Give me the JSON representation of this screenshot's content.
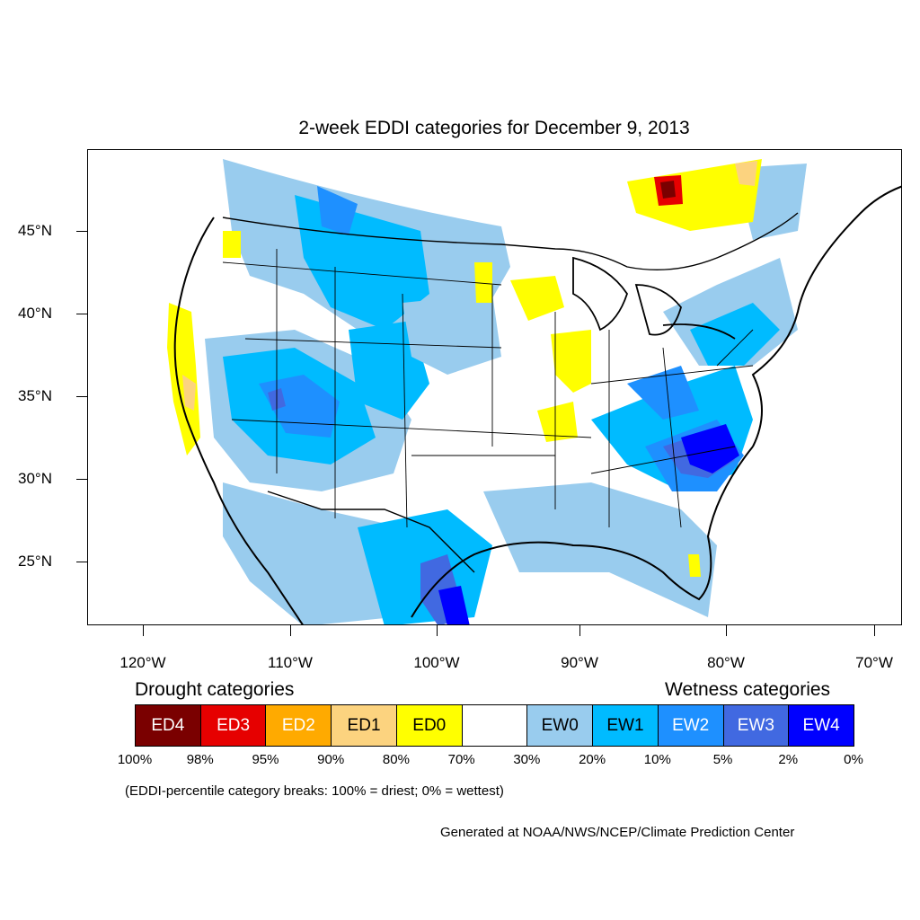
{
  "title": "2-week EDDI categories for December 9, 2013",
  "map": {
    "projection": "Lambert conformal (CONUS)",
    "lat_ticks": [
      "45°N",
      "40°N",
      "35°N",
      "30°N",
      "25°N"
    ],
    "lon_ticks": [
      "120°W",
      "110°W",
      "100°W",
      "90°W",
      "80°W",
      "70°W"
    ],
    "regions": [
      {
        "category": "EW1",
        "area": "Northern Rockies / Montana"
      },
      {
        "category": "EW2",
        "area": "Great Basin, Utah, Colorado"
      },
      {
        "category": "EW4",
        "area": "South Carolina / Georgia coast"
      },
      {
        "category": "EW3",
        "area": "South Texas Gulf coast"
      },
      {
        "category": "ED0",
        "area": "Illinois / Missouri, Wisconsin, Northern California coast"
      },
      {
        "category": "ED4",
        "area": "Eastern Ontario / Quebec"
      }
    ]
  },
  "legend": {
    "drought_heading": "Drought categories",
    "wetness_heading": "Wetness categories",
    "categories": [
      {
        "label": "ED4",
        "color": "#7a0000",
        "text_color": "#ffffff"
      },
      {
        "label": "ED3",
        "color": "#e60000",
        "text_color": "#ffffff"
      },
      {
        "label": "ED2",
        "color": "#ffaa00",
        "text_color": "#ffffff"
      },
      {
        "label": "ED1",
        "color": "#fcd37f",
        "text_color": "#000000"
      },
      {
        "label": "ED0",
        "color": "#ffff00",
        "text_color": "#000000"
      },
      {
        "label": "",
        "color": "#ffffff",
        "text_color": "#000000"
      },
      {
        "label": "EW0",
        "color": "#99ccee",
        "text_color": "#000000"
      },
      {
        "label": "EW1",
        "color": "#00bbff",
        "text_color": "#000000"
      },
      {
        "label": "EW2",
        "color": "#1e90ff",
        "text_color": "#ffffff"
      },
      {
        "label": "EW3",
        "color": "#4169e1",
        "text_color": "#ffffff"
      },
      {
        "label": "EW4",
        "color": "#0000ff",
        "text_color": "#ffffff"
      }
    ],
    "breaks": [
      "100%",
      "98%",
      "95%",
      "90%",
      "80%",
      "70%",
      "30%",
      "20%",
      "10%",
      "5%",
      "2%",
      "0%"
    ]
  },
  "note": "(EDDI-percentile category breaks: 100% = driest; 0% = wettest)",
  "credit": "Generated at NOAA/NWS/NCEP/Climate Prediction Center"
}
